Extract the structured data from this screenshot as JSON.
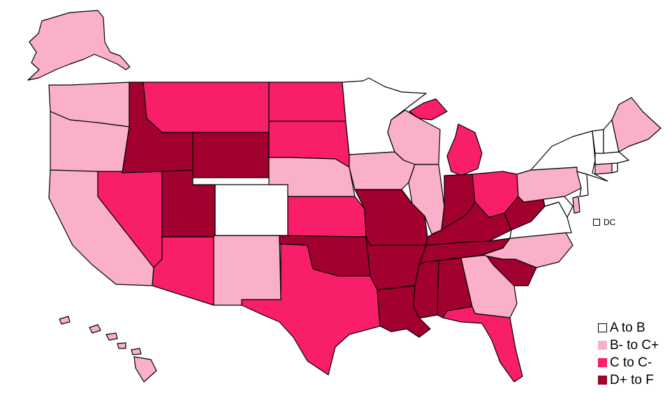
{
  "legend": {
    "items": [
      {
        "label": "A to B",
        "color": "#ffffff",
        "border": "#000000"
      },
      {
        "label": "B- to C+",
        "color": "#f9b0c8"
      },
      {
        "label": "C to C-",
        "color": "#f81e6a"
      },
      {
        "label": "D+ to F",
        "color": "#a2002e"
      }
    ]
  },
  "dc": {
    "label": "DC",
    "grade_class": "A to B"
  },
  "states": {
    "WA": "B- to C+",
    "OR": "B- to C+",
    "CA": "B- to C+",
    "NV": "C to C-",
    "ID": "D+ to F",
    "MT": "C to C-",
    "WY": "D+ to F",
    "UT": "D+ to F",
    "AZ": "C to C-",
    "CO": "A to B",
    "NM": "B- to C+",
    "ND": "C to C-",
    "SD": "C to C-",
    "NE": "B- to C+",
    "KS": "C to C-",
    "OK": "D+ to F",
    "TX": "C to C-",
    "MN": "A to B",
    "IA": "B- to C+",
    "MO": "D+ to F",
    "AR": "D+ to F",
    "LA": "D+ to F",
    "WI": "B- to C+",
    "IL": "B- to C+",
    "MI": "C to C-",
    "IN": "D+ to F",
    "OH": "C to C-",
    "KY": "D+ to F",
    "TN": "D+ to F",
    "MS": "D+ to F",
    "AL": "D+ to F",
    "GA": "B- to C+",
    "FL": "C to C-",
    "SC": "D+ to F",
    "NC": "B- to C+",
    "VA": "A to B",
    "WV": "D+ to F",
    "PA": "B- to C+",
    "NY": "A to B",
    "VT": "A to B",
    "NH": "A to B",
    "ME": "B- to C+",
    "MA": "A to B",
    "RI": "A to B",
    "CT": "B- to C+",
    "NJ": "A to B",
    "DE": "B- to C+",
    "MD": "A to B",
    "AK": "B- to C+",
    "HI": "B- to C+"
  }
}
